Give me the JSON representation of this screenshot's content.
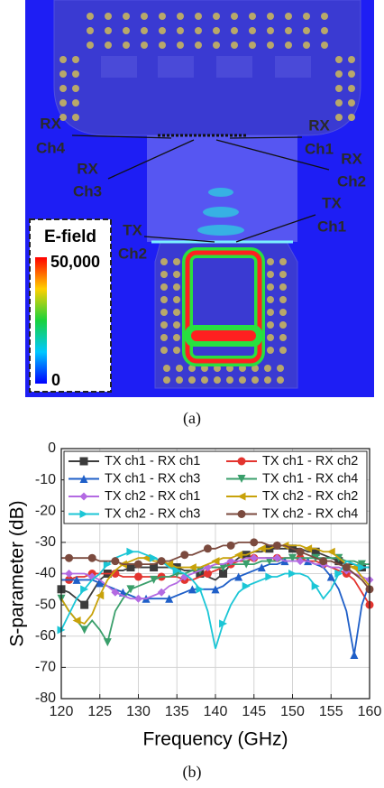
{
  "panel_a": {
    "labels": [
      [
        "RX",
        "Ch4"
      ],
      [
        "RX",
        "Ch3"
      ],
      [
        "RX",
        "Ch1"
      ],
      [
        "RX",
        "Ch2"
      ],
      [
        "TX",
        "Ch1"
      ],
      [
        "TX",
        "Ch2"
      ]
    ],
    "colorbar": {
      "title": "E-field",
      "max_label": "50,000",
      "min_label": "0"
    },
    "caption": "(a)"
  },
  "chart_data": {
    "type": "line",
    "xlabel": "Frequency (GHz)",
    "ylabel": "S-parameter (dB)",
    "caption": "(b)",
    "x": [
      120,
      121,
      122,
      123,
      124,
      125,
      126,
      127,
      128,
      129,
      130,
      131,
      132,
      133,
      134,
      135,
      136,
      137,
      138,
      139,
      140,
      141,
      142,
      143,
      144,
      145,
      146,
      147,
      148,
      149,
      150,
      151,
      152,
      153,
      154,
      155,
      156,
      157,
      158,
      159,
      160
    ],
    "xlim": [
      120,
      160
    ],
    "xticks": [
      120,
      125,
      130,
      135,
      140,
      145,
      150,
      155,
      160
    ],
    "ylim": [
      -80,
      0
    ],
    "yticks": [
      -80,
      -70,
      -60,
      -50,
      -40,
      -30,
      -20,
      -10,
      0
    ],
    "grid": true,
    "series": [
      {
        "name": "TX ch1 - RX ch1",
        "color": "#3c3c3c",
        "marker": "square",
        "values": [
          -45,
          -46,
          -48,
          -50,
          -46,
          -42,
          -40,
          -39,
          -39,
          -38,
          -38,
          -38,
          -38,
          -38,
          -38,
          -38,
          -39,
          -39,
          -40,
          -41,
          -42,
          -40,
          -37,
          -35,
          -34,
          -33,
          -33,
          -32,
          -32,
          -32,
          -32,
          -32,
          -33,
          -33,
          -34,
          -35,
          -36,
          -37,
          -37,
          -38,
          -38
        ]
      },
      {
        "name": "TX ch1 - RX ch2",
        "color": "#e3342f",
        "marker": "circle",
        "values": [
          -42,
          -42,
          -41,
          -41,
          -40,
          -40,
          -40,
          -40,
          -41,
          -41,
          -41,
          -41,
          -41,
          -41,
          -41,
          -41,
          -42,
          -42,
          -41,
          -40,
          -39,
          -38,
          -37,
          -36,
          -36,
          -35,
          -35,
          -35,
          -35,
          -35,
          -35,
          -35,
          -36,
          -36,
          -37,
          -38,
          -39,
          -40,
          -42,
          -46,
          -50
        ]
      },
      {
        "name": "TX ch1 - RX ch3",
        "color": "#1f5fc8",
        "marker": "triangle-up",
        "values": [
          -42,
          -42,
          -42,
          -42,
          -42,
          -43,
          -44,
          -45,
          -46,
          -47,
          -48,
          -48,
          -48,
          -48,
          -48,
          -47,
          -46,
          -45,
          -45,
          -45,
          -45,
          -44,
          -42,
          -41,
          -40,
          -39,
          -38,
          -37,
          -37,
          -36,
          -36,
          -36,
          -36,
          -37,
          -38,
          -41,
          -45,
          -52,
          -66,
          -50,
          -43
        ]
      },
      {
        "name": "TX ch1 - RX ch4",
        "color": "#3a9f6b",
        "marker": "triangle-down",
        "values": [
          -48,
          -52,
          -55,
          -58,
          -55,
          -58,
          -62,
          -52,
          -48,
          -45,
          -44,
          -43,
          -42,
          -41,
          -41,
          -40,
          -40,
          -39,
          -39,
          -38,
          -38,
          -38,
          -37,
          -37,
          -37,
          -37,
          -36,
          -36,
          -36,
          -35,
          -35,
          -35,
          -35,
          -35,
          -35,
          -35,
          -35,
          -36,
          -36,
          -37,
          -37
        ]
      },
      {
        "name": "TX ch2 - RX ch1",
        "color": "#b36ae2",
        "marker": "diamond",
        "values": [
          -40,
          -40,
          -40,
          -40,
          -41,
          -42,
          -44,
          -46,
          -47,
          -48,
          -48,
          -48,
          -47,
          -46,
          -44,
          -43,
          -41,
          -40,
          -39,
          -38,
          -37,
          -37,
          -36,
          -36,
          -35,
          -35,
          -35,
          -35,
          -35,
          -36,
          -36,
          -36,
          -36,
          -37,
          -37,
          -38,
          -38,
          -39,
          -40,
          -41,
          -42
        ]
      },
      {
        "name": "TX ch2 - RX ch2",
        "color": "#c8a20a",
        "marker": "triangle-left",
        "values": [
          -48,
          -52,
          -55,
          -56,
          -53,
          -47,
          -42,
          -39,
          -37,
          -36,
          -35,
          -35,
          -36,
          -36,
          -37,
          -38,
          -38,
          -38,
          -38,
          -37,
          -36,
          -35,
          -35,
          -34,
          -34,
          -33,
          -32,
          -32,
          -31,
          -31,
          -31,
          -31,
          -32,
          -32,
          -33,
          -33,
          -35,
          -37,
          -38,
          -41,
          -44
        ]
      },
      {
        "name": "TX ch2 - RX ch3",
        "color": "#1bc6d6",
        "marker": "triangle-right",
        "values": [
          -58,
          -53,
          -48,
          -45,
          -42,
          -40,
          -37,
          -35,
          -34,
          -33,
          -33,
          -34,
          -35,
          -36,
          -38,
          -39,
          -40,
          -42,
          -45,
          -52,
          -64,
          -56,
          -50,
          -46,
          -44,
          -43,
          -42,
          -41,
          -41,
          -40,
          -40,
          -40,
          -41,
          -44,
          -48,
          -45,
          -40,
          -36,
          -37,
          -38,
          -38
        ]
      },
      {
        "name": "TX ch2 - RX ch4",
        "color": "#7b4a3e",
        "marker": "circle",
        "values": [
          -35,
          -35,
          -35,
          -35,
          -35,
          -36,
          -36,
          -36,
          -37,
          -37,
          -37,
          -37,
          -37,
          -36,
          -36,
          -35,
          -34,
          -34,
          -33,
          -32,
          -32,
          -31,
          -31,
          -30,
          -30,
          -30,
          -30,
          -31,
          -31,
          -31,
          -32,
          -33,
          -34,
          -35,
          -36,
          -36,
          -37,
          -38,
          -40,
          -42,
          -45
        ]
      }
    ]
  }
}
